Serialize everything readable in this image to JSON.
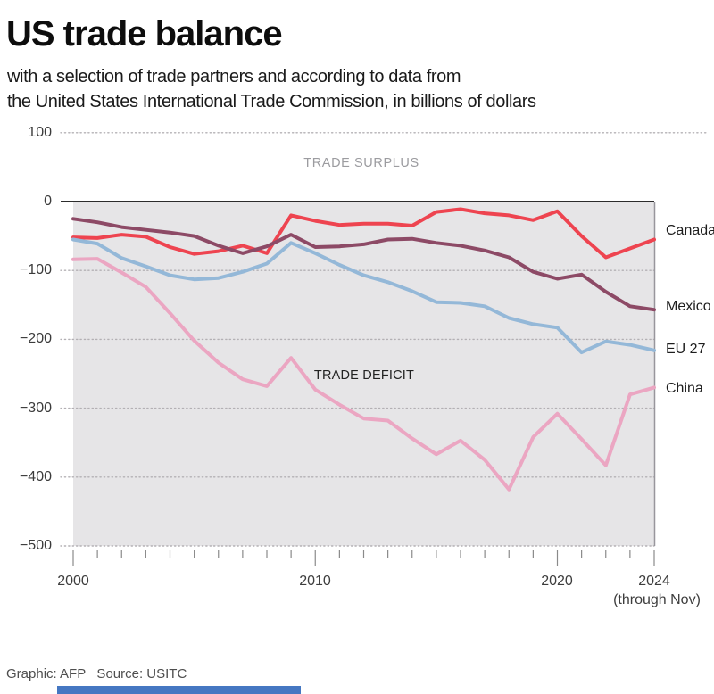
{
  "header": {
    "title": "US trade balance",
    "subtitle_line1": "with a selection of trade partners and according to data from",
    "subtitle_line2": "the United States International Trade Commission, in billions of dollars"
  },
  "chart_data": {
    "type": "line",
    "title": "US trade balance",
    "units": "billions of dollars",
    "x": [
      2000,
      2001,
      2002,
      2003,
      2004,
      2005,
      2006,
      2007,
      2008,
      2009,
      2010,
      2011,
      2012,
      2013,
      2014,
      2015,
      2016,
      2017,
      2018,
      2019,
      2020,
      2021,
      2022,
      2023,
      2024
    ],
    "series": [
      {
        "name": "Canada",
        "color": "#ee4450",
        "values": [
          -52,
          -53,
          -48,
          -51,
          -66,
          -76,
          -72,
          -64,
          -75,
          -20,
          -28,
          -34,
          -32,
          -32,
          -35,
          -15,
          -11,
          -17,
          -20,
          -27,
          -14,
          -50,
          -81,
          -68,
          -55
        ]
      },
      {
        "name": "Mexico",
        "color": "#8d4a66",
        "values": [
          -25,
          -30,
          -37,
          -41,
          -45,
          -50,
          -64,
          -75,
          -65,
          -48,
          -66,
          -65,
          -62,
          -55,
          -54,
          -60,
          -64,
          -71,
          -81,
          -102,
          -112,
          -106,
          -131,
          -152,
          -157
        ]
      },
      {
        "name": "EU 27",
        "color": "#94b8d8",
        "values": [
          -55,
          -61,
          -82,
          -94,
          -107,
          -113,
          -111,
          -102,
          -90,
          -60,
          -75,
          -92,
          -107,
          -117,
          -130,
          -146,
          -147,
          -152,
          -169,
          -178,
          -183,
          -219,
          -203,
          -208,
          -216
        ]
      },
      {
        "name": "China",
        "color": "#eba6c2",
        "values": [
          -84,
          -83,
          -103,
          -124,
          -162,
          -202,
          -234,
          -258,
          -268,
          -227,
          -273,
          -295,
          -315,
          -318,
          -344,
          -367,
          -347,
          -375,
          -418,
          -342,
          -308,
          -345,
          -383,
          -280,
          -270
        ]
      }
    ],
    "ylim": [
      -500,
      100
    ],
    "y_ticks": [
      100,
      0,
      -100,
      -200,
      -300,
      -400,
      -500
    ],
    "x_axis": {
      "major_labels": [
        "2000",
        "2010",
        "2020",
        "2024"
      ],
      "major_years": [
        2000,
        2010,
        2020,
        2024
      ],
      "note": "(through Nov)"
    },
    "annotations": {
      "surplus": "TRADE SURPLUS",
      "deficit": "TRADE DEFICIT"
    },
    "grid": "dotted horizontal gridlines, solid zero axis, shaded deficit region",
    "legend_position": "right end-of-line labels"
  },
  "footer": {
    "credit": "Graphic: AFP   Source: USITC"
  },
  "colors": {
    "deficit_region_fill": "#e6e5e7",
    "zero_axis": "#2c2c2c",
    "gridline": "#b3b0b4",
    "tick": "#8a8a8a",
    "region_right_border": "#98969c",
    "progress_bar": "#4577c2"
  }
}
